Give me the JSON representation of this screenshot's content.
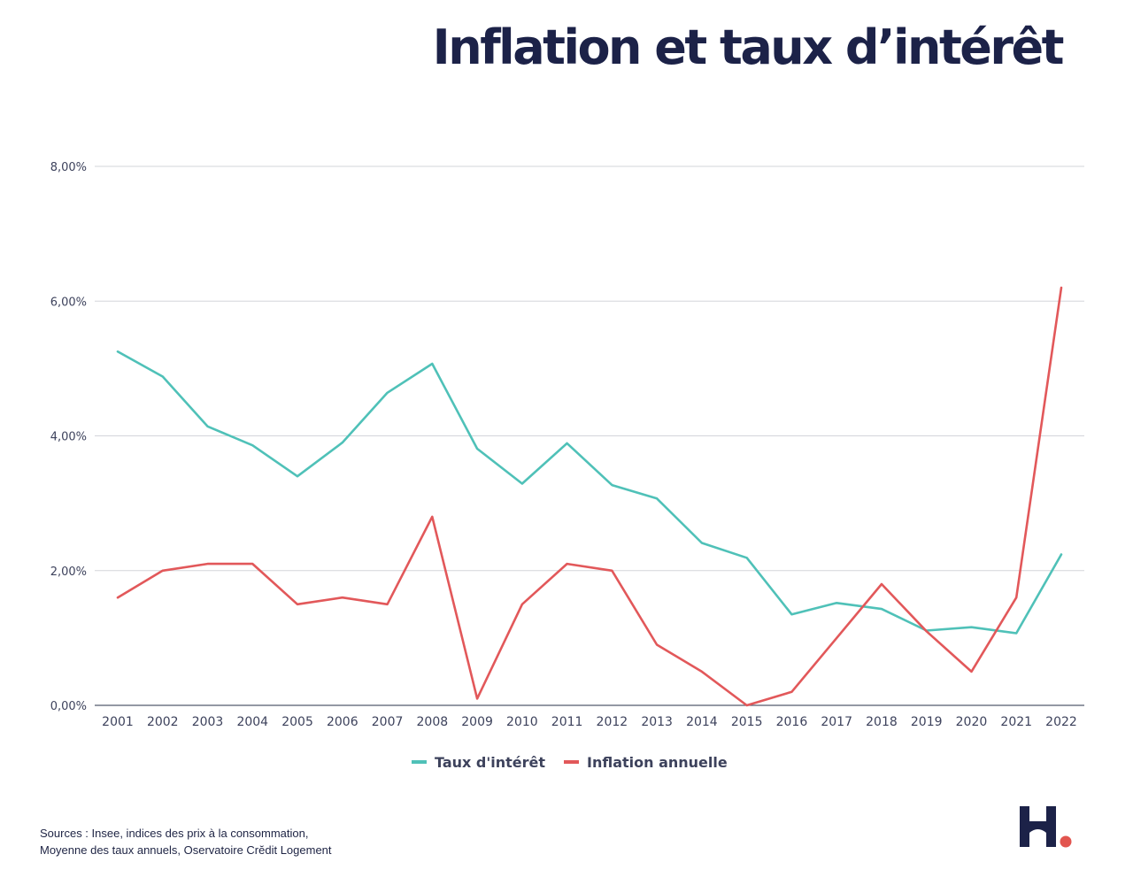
{
  "title": "Inflation et taux d’intérêt",
  "sources": {
    "line1": "Sources : Insee, indices des prix à la consommation,",
    "line2": "Moyenne des taux annuels, Oservatoire Crĕdit Logement"
  },
  "logo": {
    "letter": "H",
    "color": "#1c2248",
    "dot_color": "#e2554f"
  },
  "chart_data": {
    "type": "line",
    "title": "",
    "xlabel": "",
    "ylabel": "",
    "x": [
      "2001",
      "2002",
      "2003",
      "2004",
      "2005",
      "2006",
      "2007",
      "2008",
      "2009",
      "2010",
      "2011",
      "2012",
      "2013",
      "2014",
      "2015",
      "2016",
      "2017",
      "2018",
      "2019",
      "2020",
      "2021",
      "2022"
    ],
    "ylim": [
      0,
      8
    ],
    "yticks": [
      {
        "value": 0,
        "label": "0,00%"
      },
      {
        "value": 2,
        "label": "2,00%"
      },
      {
        "value": 4,
        "label": "4,00%"
      },
      {
        "value": 6,
        "label": "6,00%"
      },
      {
        "value": 8,
        "label": "8,00%"
      }
    ],
    "grid": true,
    "legend_position": "bottom",
    "series": [
      {
        "name": "Taux d'intérêt",
        "color": "#4fc1b8",
        "values": [
          5.25,
          4.88,
          4.14,
          3.86,
          3.4,
          3.9,
          4.64,
          5.07,
          3.81,
          3.29,
          3.89,
          3.27,
          3.07,
          2.41,
          2.19,
          1.35,
          1.52,
          1.43,
          1.11,
          1.16,
          1.07,
          2.24
        ]
      },
      {
        "name": "Inflation annuelle",
        "color": "#e2585a",
        "values": [
          1.6,
          2.0,
          2.1,
          2.1,
          1.5,
          1.6,
          1.5,
          2.8,
          0.1,
          1.5,
          2.1,
          2.0,
          0.9,
          0.5,
          0.0,
          0.2,
          1.0,
          1.8,
          1.1,
          0.5,
          1.6,
          6.2
        ]
      }
    ]
  }
}
